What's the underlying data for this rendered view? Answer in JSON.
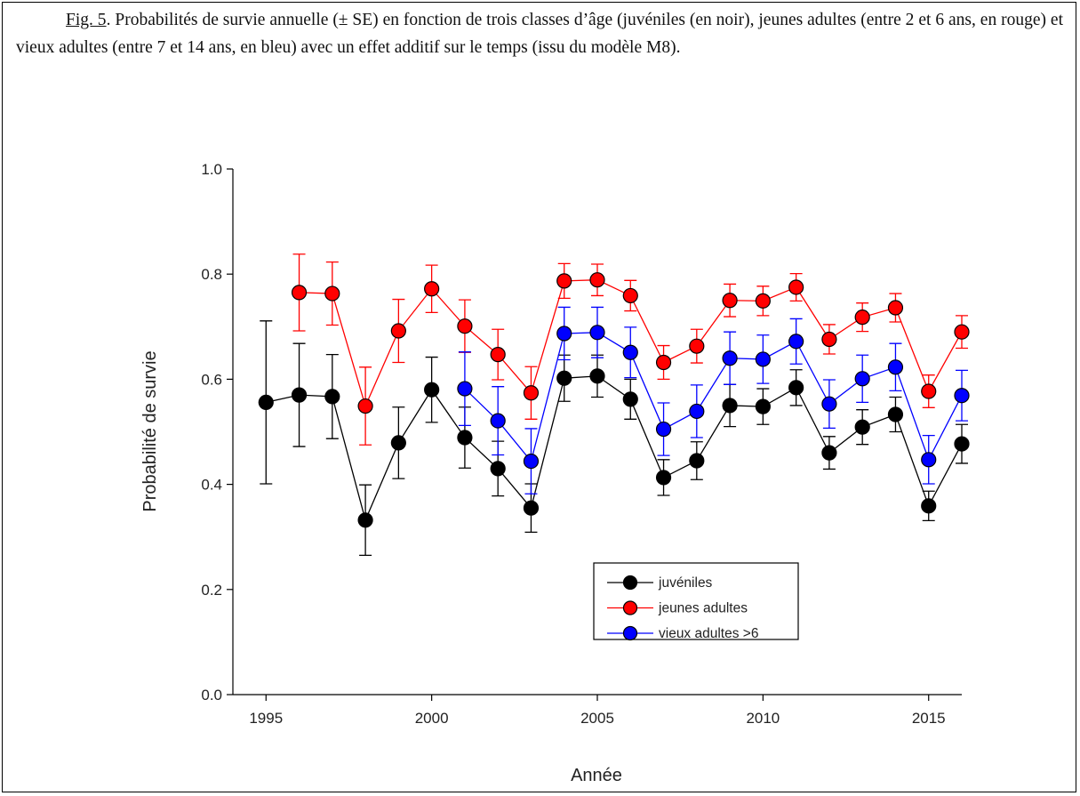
{
  "caption": {
    "label": "Fig. 5",
    "text": ". Probabilités de survie annuelle (± SE) en fonction de trois classes d’âge (juvéniles (en noir), jeunes adultes (entre 2 et 6 ans, en rouge) et vieux adultes (entre 7 et 14 ans, en bleu) avec un effet additif sur le temps (issu du modèle M8)."
  },
  "chart_data": {
    "type": "line",
    "x_label": "Année",
    "y_label": "Probabilité de survie",
    "x": [
      1995,
      1996,
      1997,
      1998,
      1999,
      2000,
      2001,
      2002,
      2003,
      2004,
      2005,
      2006,
      2007,
      2008,
      2009,
      2010,
      2011,
      2012,
      2013,
      2014,
      2015,
      2016
    ],
    "xlim": [
      1994,
      2016
    ],
    "xticks": [
      1995,
      2000,
      2005,
      2010,
      2015
    ],
    "ylim": [
      0,
      1
    ],
    "yticks": [
      {
        "value": 0,
        "label": "0.0"
      },
      0.2,
      0.4,
      0.6,
      0.8,
      {
        "value": 1,
        "label": "1.0"
      }
    ],
    "legend": "bottom-right",
    "series": [
      {
        "name": "juvéniles",
        "color": "#000000",
        "values": [
          0.556,
          0.57,
          0.567,
          0.332,
          0.479,
          0.58,
          0.489,
          0.43,
          0.355,
          0.602,
          0.606,
          0.562,
          0.413,
          0.445,
          0.55,
          0.548,
          0.584,
          0.46,
          0.509,
          0.533,
          0.359,
          0.477
        ],
        "errors": [
          0.155,
          0.098,
          0.08,
          0.067,
          0.068,
          0.062,
          0.058,
          0.052,
          0.046,
          0.044,
          0.04,
          0.038,
          0.034,
          0.036,
          0.04,
          0.034,
          0.034,
          0.031,
          0.033,
          0.033,
          0.028,
          0.037
        ]
      },
      {
        "name": "jeunes adultes",
        "color": "#ff0000",
        "values": [
          null,
          0.765,
          0.763,
          0.549,
          0.692,
          0.772,
          0.701,
          0.647,
          0.574,
          0.787,
          0.789,
          0.759,
          0.632,
          0.663,
          0.75,
          0.749,
          0.775,
          0.676,
          0.718,
          0.736,
          0.577,
          0.69
        ],
        "errors": [
          null,
          0.073,
          0.06,
          0.074,
          0.06,
          0.045,
          0.05,
          0.048,
          0.05,
          0.033,
          0.03,
          0.029,
          0.032,
          0.032,
          0.031,
          0.028,
          0.026,
          0.028,
          0.027,
          0.027,
          0.031,
          0.031
        ]
      },
      {
        "name": "vieux adultes >6",
        "color": "#0000ff",
        "values": [
          null,
          null,
          null,
          null,
          null,
          null,
          0.582,
          0.521,
          0.444,
          0.687,
          0.689,
          0.651,
          0.505,
          0.539,
          0.64,
          0.638,
          0.672,
          0.553,
          0.601,
          0.623,
          0.447,
          0.569
        ],
        "errors": [
          null,
          null,
          null,
          null,
          null,
          null,
          0.07,
          0.065,
          0.062,
          0.05,
          0.048,
          0.048,
          0.05,
          0.05,
          0.05,
          0.046,
          0.043,
          0.046,
          0.045,
          0.045,
          0.046,
          0.048
        ]
      }
    ]
  }
}
